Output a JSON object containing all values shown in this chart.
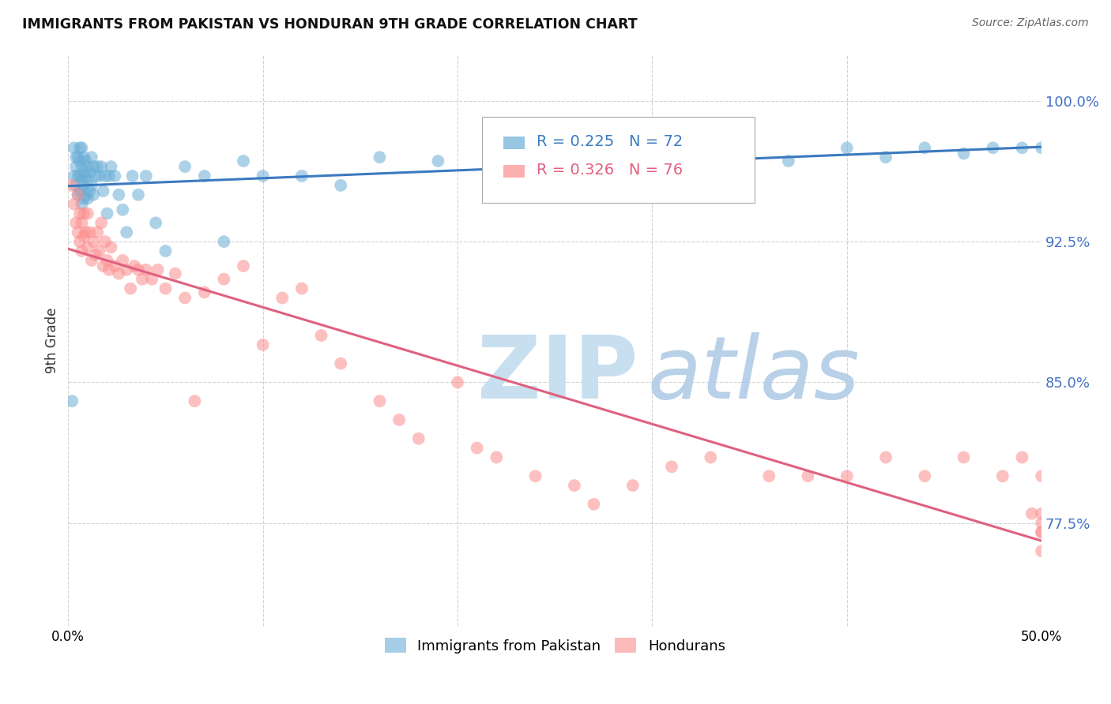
{
  "title": "IMMIGRANTS FROM PAKISTAN VS HONDURAN 9TH GRADE CORRELATION CHART",
  "source": "Source: ZipAtlas.com",
  "ylabel": "9th Grade",
  "xlim": [
    0.0,
    0.5
  ],
  "ylim": [
    0.72,
    1.025
  ],
  "yticks": [
    0.775,
    0.85,
    0.925,
    1.0
  ],
  "ytick_labels": [
    "77.5%",
    "85.0%",
    "92.5%",
    "100.0%"
  ],
  "pakistan_R": 0.225,
  "pakistan_N": 72,
  "honduran_R": 0.326,
  "honduran_N": 76,
  "pakistan_color": "#6baed6",
  "honduran_color": "#fc8d8d",
  "pakistan_line_color": "#3a7abf",
  "honduran_line_color": "#e06080",
  "background_color": "#ffffff",
  "grid_color": "#c8c8c8",
  "watermark_zip_color": "#c8dff0",
  "watermark_atlas_color": "#b8d0e8",
  "pakistan_x": [
    0.002,
    0.003,
    0.003,
    0.004,
    0.004,
    0.004,
    0.005,
    0.005,
    0.005,
    0.006,
    0.006,
    0.006,
    0.006,
    0.007,
    0.007,
    0.007,
    0.007,
    0.007,
    0.008,
    0.008,
    0.008,
    0.008,
    0.009,
    0.009,
    0.009,
    0.01,
    0.01,
    0.01,
    0.011,
    0.011,
    0.012,
    0.012,
    0.013,
    0.013,
    0.014,
    0.015,
    0.016,
    0.017,
    0.018,
    0.019,
    0.02,
    0.021,
    0.022,
    0.024,
    0.026,
    0.028,
    0.03,
    0.033,
    0.036,
    0.04,
    0.045,
    0.05,
    0.06,
    0.07,
    0.08,
    0.09,
    0.1,
    0.12,
    0.14,
    0.16,
    0.19,
    0.22,
    0.27,
    0.32,
    0.37,
    0.4,
    0.42,
    0.44,
    0.46,
    0.475,
    0.49,
    0.5
  ],
  "pakistan_y": [
    0.84,
    0.975,
    0.96,
    0.97,
    0.965,
    0.955,
    0.97,
    0.96,
    0.95,
    0.975,
    0.968,
    0.96,
    0.952,
    0.975,
    0.965,
    0.958,
    0.952,
    0.945,
    0.97,
    0.962,
    0.955,
    0.948,
    0.968,
    0.96,
    0.95,
    0.965,
    0.958,
    0.948,
    0.962,
    0.952,
    0.97,
    0.955,
    0.965,
    0.95,
    0.96,
    0.965,
    0.96,
    0.965,
    0.952,
    0.96,
    0.94,
    0.96,
    0.965,
    0.96,
    0.95,
    0.942,
    0.93,
    0.96,
    0.95,
    0.96,
    0.935,
    0.92,
    0.965,
    0.96,
    0.925,
    0.968,
    0.96,
    0.96,
    0.955,
    0.97,
    0.968,
    0.975,
    0.96,
    0.972,
    0.968,
    0.975,
    0.97,
    0.975,
    0.972,
    0.975,
    0.975,
    0.975
  ],
  "honduran_x": [
    0.002,
    0.003,
    0.004,
    0.005,
    0.005,
    0.006,
    0.006,
    0.007,
    0.007,
    0.008,
    0.008,
    0.009,
    0.01,
    0.01,
    0.011,
    0.012,
    0.013,
    0.014,
    0.015,
    0.016,
    0.017,
    0.018,
    0.019,
    0.02,
    0.021,
    0.022,
    0.024,
    0.026,
    0.028,
    0.03,
    0.032,
    0.034,
    0.036,
    0.038,
    0.04,
    0.043,
    0.046,
    0.05,
    0.055,
    0.06,
    0.065,
    0.07,
    0.08,
    0.09,
    0.1,
    0.11,
    0.12,
    0.13,
    0.14,
    0.16,
    0.17,
    0.18,
    0.2,
    0.21,
    0.22,
    0.24,
    0.26,
    0.27,
    0.29,
    0.31,
    0.33,
    0.36,
    0.38,
    0.4,
    0.42,
    0.44,
    0.46,
    0.48,
    0.49,
    0.495,
    0.5,
    0.5,
    0.5,
    0.5,
    0.5,
    0.5
  ],
  "honduran_y": [
    0.955,
    0.945,
    0.935,
    0.95,
    0.93,
    0.94,
    0.925,
    0.935,
    0.92,
    0.94,
    0.928,
    0.93,
    0.94,
    0.922,
    0.93,
    0.915,
    0.925,
    0.918,
    0.93,
    0.92,
    0.935,
    0.912,
    0.925,
    0.915,
    0.91,
    0.922,
    0.912,
    0.908,
    0.915,
    0.91,
    0.9,
    0.912,
    0.91,
    0.905,
    0.91,
    0.905,
    0.91,
    0.9,
    0.908,
    0.895,
    0.84,
    0.898,
    0.905,
    0.912,
    0.87,
    0.895,
    0.9,
    0.875,
    0.86,
    0.84,
    0.83,
    0.82,
    0.85,
    0.815,
    0.81,
    0.8,
    0.795,
    0.785,
    0.795,
    0.805,
    0.81,
    0.8,
    0.8,
    0.8,
    0.81,
    0.8,
    0.81,
    0.8,
    0.81,
    0.78,
    0.775,
    0.78,
    0.8,
    0.77,
    0.76,
    0.77
  ]
}
